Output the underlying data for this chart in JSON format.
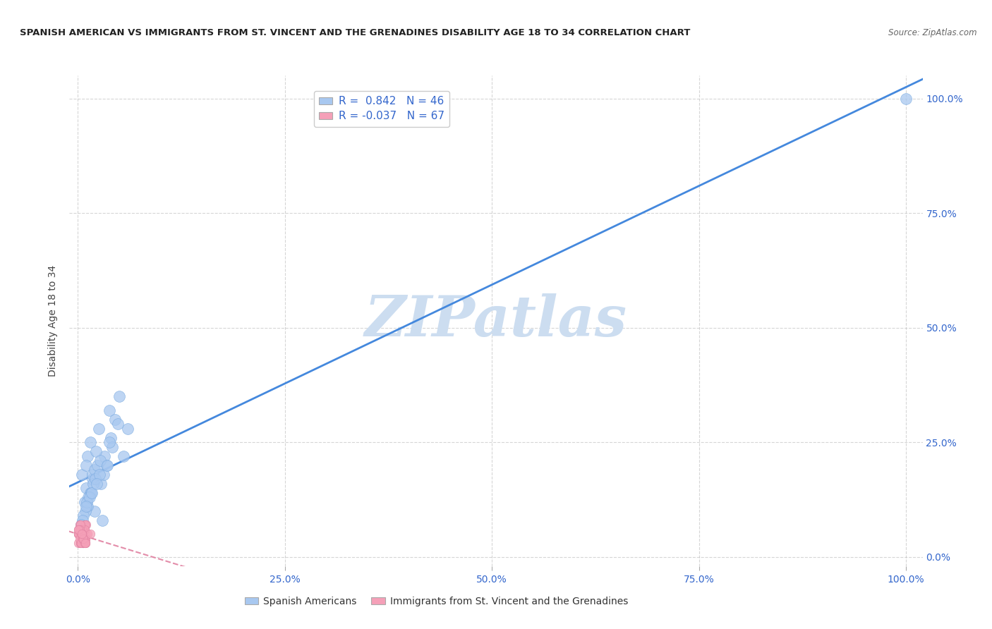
{
  "title": "SPANISH AMERICAN VS IMMIGRANTS FROM ST. VINCENT AND THE GRENADINES DISABILITY AGE 18 TO 34 CORRELATION CHART",
  "source": "Source: ZipAtlas.com",
  "ylabel": "Disability Age 18 to 34",
  "legend_label1": "Spanish Americans",
  "legend_label2": "Immigrants from St. Vincent and the Grenadines",
  "blue_color": "#a8c8f0",
  "blue_edge_color": "#7aaae0",
  "blue_line_color": "#4488dd",
  "pink_color": "#f5a0b8",
  "pink_edge_color": "#e080a0",
  "pink_line_color": "#e080a0",
  "text_blue": "#3366cc",
  "background_color": "#ffffff",
  "grid_color": "#bbbbbb",
  "watermark_color": "#ccddf0",
  "blue_r": 0.842,
  "blue_n": 46,
  "pink_r": -0.037,
  "pink_n": 67,
  "blue_x": [
    100,
    1.2,
    1.8,
    2.5,
    3.2,
    3.8,
    0.5,
    1.0,
    1.5,
    4.5,
    5.0,
    2.0,
    3.0,
    6.0,
    1.0,
    2.2,
    1.8,
    0.8,
    3.5,
    4.0,
    2.8,
    1.5,
    2.0,
    5.5,
    1.2,
    0.9,
    1.6,
    2.4,
    3.1,
    1.3,
    0.7,
    4.2,
    1.9,
    2.7,
    3.6,
    1.1,
    0.6,
    2.1,
    1.4,
    3.8,
    2.6,
    1.7,
    4.8,
    0.4,
    1.0,
    2.3
  ],
  "blue_y": [
    100,
    22,
    17,
    28,
    22,
    32,
    18,
    20,
    25,
    30,
    35,
    10,
    8,
    28,
    15,
    23,
    18,
    12,
    20,
    26,
    16,
    14,
    19,
    22,
    11,
    10,
    14,
    20,
    18,
    13,
    9,
    24,
    16,
    21,
    20,
    12,
    8,
    17,
    13,
    25,
    18,
    14,
    29,
    7,
    11,
    16
  ],
  "pink_x": [
    0.2,
    0.5,
    0.8,
    0.3,
    0.6,
    1.0,
    0.4,
    0.7,
    0.9,
    0.1,
    0.5,
    0.3,
    0.6,
    0.2,
    0.8,
    0.4,
    0.7,
    0.1,
    0.9,
    0.5,
    0.3,
    0.6,
    0.2,
    0.8,
    0.4,
    0.7,
    0.1,
    0.9,
    0.5,
    0.3,
    0.6,
    0.2,
    0.8,
    0.4,
    0.7,
    0.1,
    0.9,
    0.5,
    0.3,
    0.6,
    0.2,
    0.8,
    1.2,
    0.4,
    0.7,
    0.1,
    0.9,
    0.5,
    0.3,
    0.6,
    0.2,
    0.8,
    0.4,
    1.5,
    0.7,
    0.1,
    0.9,
    0.5,
    0.3,
    0.6,
    0.2,
    0.8,
    0.4,
    0.7,
    0.1,
    0.9,
    0.5
  ],
  "pink_y": [
    5,
    4,
    6,
    3,
    5,
    7,
    4,
    6,
    3,
    5,
    4,
    6,
    3,
    5,
    7,
    4,
    6,
    3,
    5,
    4,
    6,
    3,
    5,
    4,
    6,
    3,
    5,
    7,
    4,
    6,
    3,
    5,
    4,
    6,
    3,
    5,
    4,
    6,
    3,
    5,
    7,
    4,
    5,
    6,
    3,
    5,
    4,
    6,
    3,
    5,
    4,
    6,
    3,
    5,
    4,
    6,
    3,
    5,
    7,
    4,
    6,
    3,
    5,
    4,
    6,
    3,
    5
  ],
  "xlim": [
    -1,
    102
  ],
  "ylim": [
    -2,
    105
  ],
  "xtick_pos": [
    0,
    25,
    50,
    75,
    100
  ],
  "ytick_pos": [
    0,
    25,
    50,
    75,
    100
  ],
  "blue_line_x0": -1,
  "blue_line_x1": 102,
  "blue_line_y0": -1,
  "blue_line_y1": 102,
  "pink_line_x0": -1,
  "pink_line_x1": 102,
  "pink_line_y0": 5.5,
  "pink_line_y1": 3.5
}
